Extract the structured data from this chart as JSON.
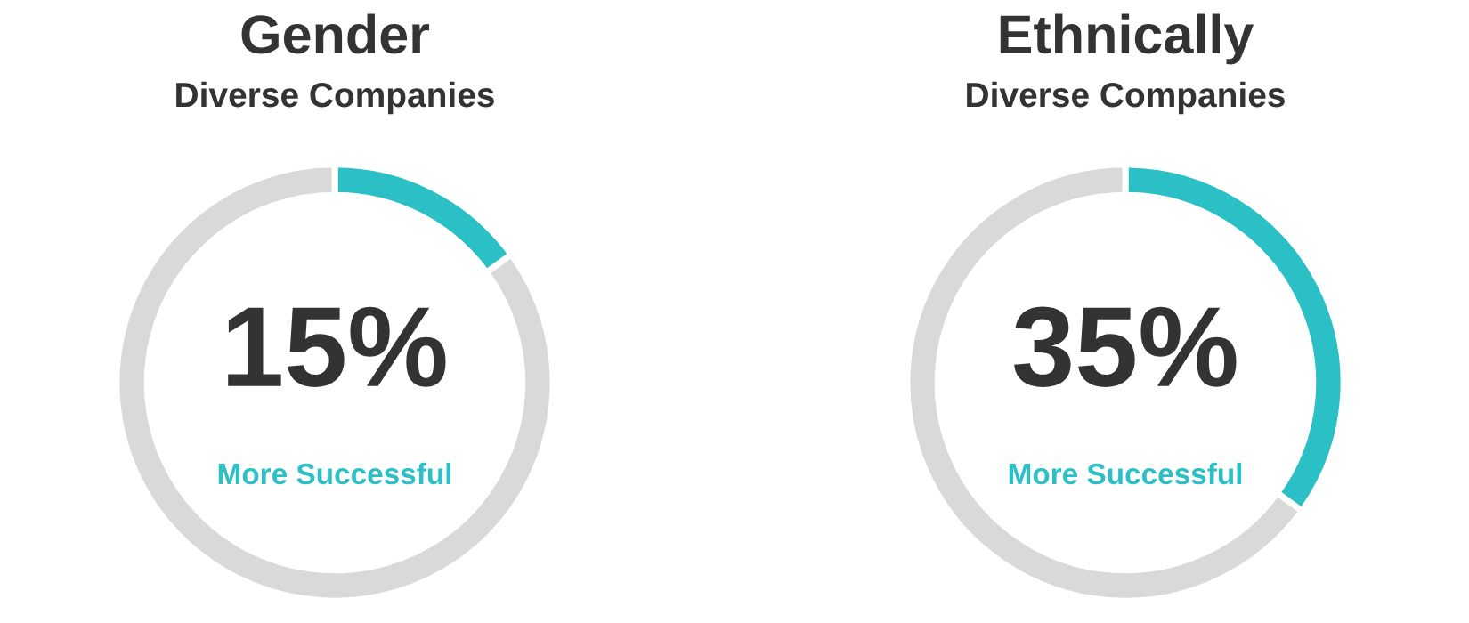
{
  "chart_data": [
    {
      "type": "donut",
      "title": "Gender",
      "subtitle": "Diverse Companies",
      "categories": [
        null,
        null
      ],
      "values": [
        15,
        85
      ],
      "colors": [
        "#2bbfc6",
        "#d9d9d9"
      ],
      "annotations": [
        "15%",
        "More Successful"
      ]
    },
    {
      "type": "donut",
      "title": "Ethnically",
      "subtitle": "Diverse Companies",
      "categories": [
        null,
        null
      ],
      "values": [
        35,
        65
      ],
      "colors": [
        "#2bbfc6",
        "#d9d9d9"
      ],
      "annotations": [
        "35%",
        "More Successful"
      ]
    }
  ]
}
